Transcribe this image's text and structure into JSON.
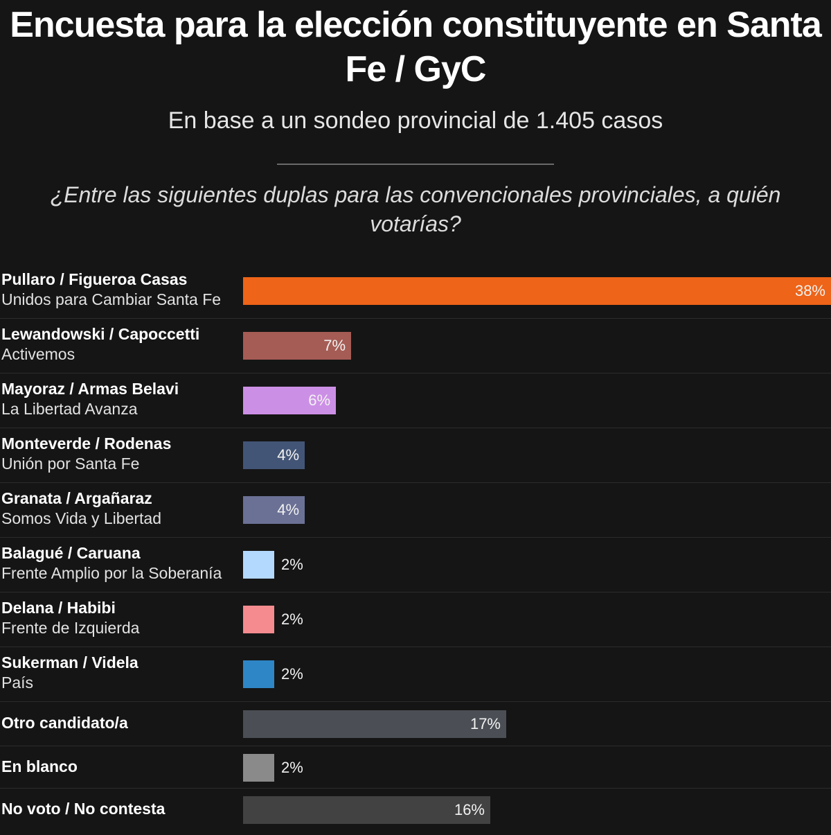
{
  "header": {
    "title": "Encuesta para la elección constituyente en Santa Fe / GyC",
    "subtitle": "En base a un sondeo provincial de 1.405 casos",
    "question": "¿Entre las siguientes duplas para las convencionales provinciales, a quién votarías?"
  },
  "chart_data": {
    "type": "bar",
    "orientation": "horizontal",
    "title": "Encuesta para la elección constituyente en Santa Fe / GyC",
    "subtitle": "En base a un sondeo provincial de 1.405 casos",
    "xlim": [
      0,
      38
    ],
    "unit": "%",
    "rows": [
      {
        "name": "Pullaro / Figueroa Casas",
        "party": "Unidos para Cambiar Santa Fe",
        "value": 38,
        "label": "38%",
        "color": "#ee6418"
      },
      {
        "name": "Lewandowski / Capoccetti",
        "party": "Activemos",
        "value": 7,
        "label": "7%",
        "color": "#a55c55"
      },
      {
        "name": "Mayoraz / Armas Belavi",
        "party": "La Libertad Avanza",
        "value": 6,
        "label": "6%",
        "color": "#cc8fe6"
      },
      {
        "name": "Monteverde / Rodenas",
        "party": "Unión por Santa Fe",
        "value": 4,
        "label": "4%",
        "color": "#435576"
      },
      {
        "name": "Granata / Argañaraz",
        "party": "Somos Vida y Libertad",
        "value": 4,
        "label": "4%",
        "color": "#6b7195"
      },
      {
        "name": "Balagué / Caruana",
        "party": "Frente Amplio por la Soberanía",
        "value": 2,
        "label": "2%",
        "color": "#b3d9ff"
      },
      {
        "name": "Delana / Habibi",
        "party": "Frente de Izquierda",
        "value": 2,
        "label": "2%",
        "color": "#f58a8f"
      },
      {
        "name": "Sukerman / Videla",
        "party": "País",
        "value": 2,
        "label": "2%",
        "color": "#2f86c6"
      },
      {
        "name": "Otro candidato/a",
        "party": "",
        "value": 17,
        "label": "17%",
        "color": "#4b4f55"
      },
      {
        "name": "En blanco",
        "party": "",
        "value": 2,
        "label": "2%",
        "color": "#8a8a8a"
      },
      {
        "name": "No voto / No contesta",
        "party": "",
        "value": 16,
        "label": "16%",
        "color": "#424242"
      }
    ]
  }
}
